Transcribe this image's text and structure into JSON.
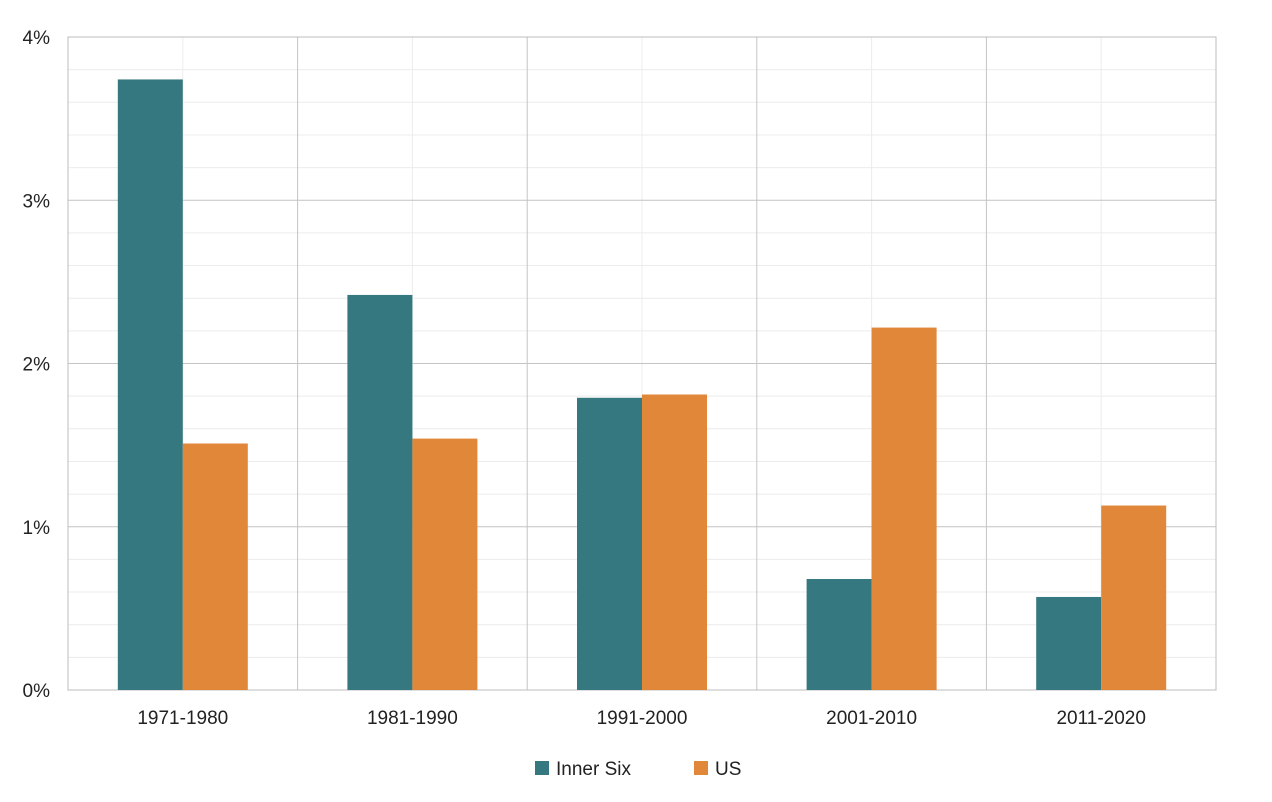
{
  "chart_data": {
    "type": "bar",
    "title": "",
    "xlabel": "",
    "ylabel": "",
    "categories": [
      "1971-1980",
      "1981-1990",
      "1991-2000",
      "2001-2010",
      "2011-2020"
    ],
    "series": [
      {
        "name": "Inner Six",
        "color": "#357880",
        "values": [
          3.74,
          2.42,
          1.79,
          0.68,
          0.57
        ]
      },
      {
        "name": "US",
        "color": "#E0873A",
        "values": [
          1.51,
          1.54,
          1.81,
          2.22,
          1.13
        ]
      }
    ],
    "ylim": [
      0,
      4
    ],
    "y_ticks": [
      0,
      1,
      2,
      3,
      4
    ],
    "y_tick_labels": [
      "0%",
      "1%",
      "2%",
      "3%",
      "4%"
    ],
    "grid": true,
    "legend_position": "bottom-center"
  }
}
